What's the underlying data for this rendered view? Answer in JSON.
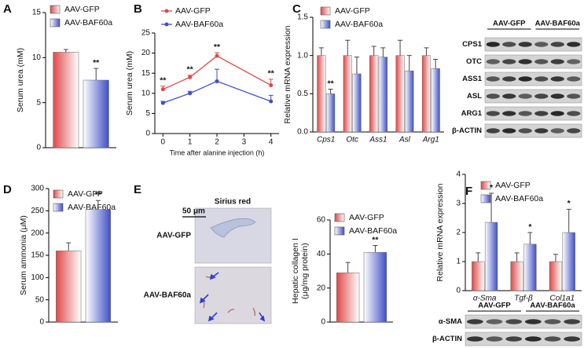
{
  "chart_data": [
    {
      "type": "bar",
      "panel": "A",
      "ylabel": "Serum urea (mM)",
      "ylim": [
        0,
        15
      ],
      "yticks": [
        0,
        5,
        10,
        15
      ],
      "series": [
        {
          "name": "AAV-GFP",
          "color": "#e04848",
          "values": [
            10.6
          ],
          "errors": [
            0.3
          ],
          "significance": [
            null
          ]
        },
        {
          "name": "AAV-BAF60a",
          "color": "#3f4fc6",
          "values": [
            7.5
          ],
          "errors": [
            1.3
          ],
          "significance": [
            "**"
          ]
        }
      ]
    },
    {
      "type": "line",
      "panel": "B",
      "ylabel": "Serum urea (mM)",
      "xlabel": "Time after alanine injection (h)",
      "x": [
        0,
        1,
        2,
        4
      ],
      "xlim": [
        -0.3,
        4.3
      ],
      "xticks": [
        0,
        1,
        2,
        3,
        4
      ],
      "ylim": [
        0,
        25
      ],
      "yticks": [
        0,
        5,
        10,
        15,
        20,
        25
      ],
      "series": [
        {
          "name": "AAV-GFP",
          "color": "#e04848",
          "values": [
            11,
            14,
            19.3,
            12
          ],
          "errors": [
            0.8,
            0.5,
            0.8,
            1.5
          ],
          "significance": [
            "**",
            "**",
            "**",
            "**"
          ]
        },
        {
          "name": "AAV-BAF60a",
          "color": "#3f4fc6",
          "values": [
            7.6,
            10,
            13,
            8
          ],
          "errors": [
            0.4,
            0.5,
            3,
            1.5
          ],
          "significance": [
            null,
            null,
            null,
            null
          ]
        }
      ]
    },
    {
      "type": "bar",
      "panel": "C",
      "ylabel": "Relative mRNA expression",
      "categories": [
        "Cps1",
        "Otc",
        "Ass1",
        "Asl",
        "Arg1"
      ],
      "ylim": [
        0,
        1.5
      ],
      "yticks": [
        {
          "value": 0,
          "label": "0.0"
        },
        0.5,
        {
          "value": 1,
          "label": "1.0"
        },
        1.5
      ],
      "series": [
        {
          "name": "AAV-GFP",
          "color": "#e04848",
          "values": [
            1.0,
            1.0,
            1.0,
            1.0,
            1.0
          ],
          "errors": [
            0.1,
            0.2,
            0.12,
            0.2,
            0.1
          ],
          "significance": [
            null,
            null,
            null,
            null,
            null
          ]
        },
        {
          "name": "AAV-BAF60a",
          "color": "#3f4fc6",
          "values": [
            0.5,
            0.76,
            0.98,
            0.8,
            0.83
          ],
          "errors": [
            0.06,
            0.22,
            0.12,
            0.2,
            0.12
          ],
          "significance": [
            "**",
            null,
            null,
            null,
            null
          ]
        }
      ]
    },
    {
      "type": "bar",
      "panel": "D",
      "ylabel": "Serum ammonia (μM)",
      "ylim": [
        0,
        300
      ],
      "yticks": [
        0,
        50,
        100,
        150,
        200,
        250,
        300
      ],
      "series": [
        {
          "name": "AAV-GFP",
          "color": "#e04848",
          "values": [
            160
          ],
          "errors": [
            18
          ],
          "significance": [
            null
          ]
        },
        {
          "name": "AAV-BAF60a",
          "color": "#3f4fc6",
          "values": [
            253
          ],
          "errors": [
            20
          ],
          "significance": [
            "**"
          ]
        }
      ]
    },
    {
      "type": "bar",
      "panel": "E",
      "ylabel": [
        "Hepatic collagen I",
        "(μg/mg protein)"
      ],
      "ylim": [
        0,
        60
      ],
      "yticks": [
        0,
        20,
        40,
        60
      ],
      "series": [
        {
          "name": "AAV-GFP",
          "color": "#e04848",
          "values": [
            29
          ],
          "errors": [
            6
          ],
          "significance": [
            null
          ]
        },
        {
          "name": "AAV-BAF60a",
          "color": "#3f4fc6",
          "values": [
            41
          ],
          "errors": [
            4
          ],
          "significance": [
            "**"
          ]
        }
      ]
    },
    {
      "type": "bar",
      "panel": "F",
      "ylabel": "Relative mRNA expression",
      "categories": [
        "α-Sma",
        "Tgf-β",
        "Col1a1"
      ],
      "ylim": [
        0,
        4
      ],
      "yticks": [
        0,
        1,
        2,
        3,
        4
      ],
      "series": [
        {
          "name": "AAV-GFP",
          "color": "#e04848",
          "values": [
            1,
            1,
            1
          ],
          "errors": [
            0.3,
            0.3,
            0.25
          ],
          "significance": [
            null,
            null,
            null
          ]
        },
        {
          "name": "AAV-BAF60a",
          "color": "#3f4fc6",
          "values": [
            2.35,
            1.6,
            2.0
          ],
          "errors": [
            1.0,
            0.4,
            0.8
          ],
          "significance": [
            "*",
            "*",
            "*"
          ]
        }
      ]
    }
  ],
  "blots": [
    {
      "groups": [
        "AAV-GFP",
        "AAV-BAF60a"
      ],
      "rows": [
        "CPS1",
        "OTC",
        "ASS1",
        "ASL",
        "ARG1",
        "β-ACTIN"
      ]
    },
    {
      "groups": [
        "AAV-GFP",
        "AAV-BAF60a"
      ],
      "rows": [
        "α-SMA",
        "β-ACTIN"
      ]
    }
  ],
  "histology": {
    "title": "Sirius red",
    "scale": "50 μm",
    "rows": [
      "AAV-GFP",
      "AAV-BAF60a"
    ]
  }
}
